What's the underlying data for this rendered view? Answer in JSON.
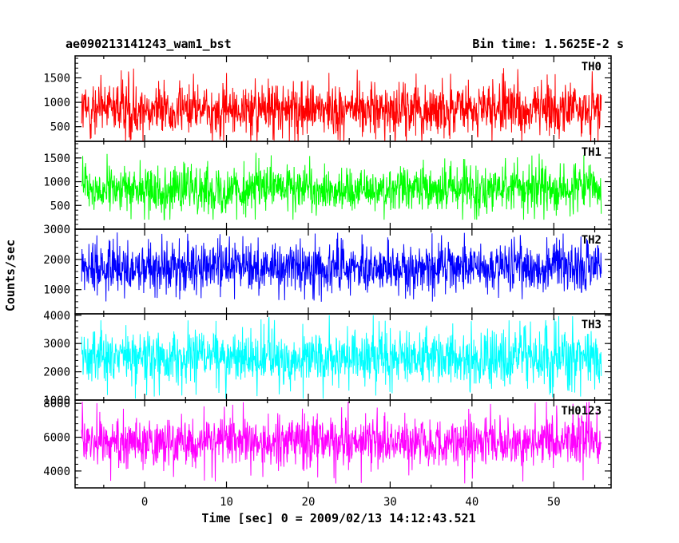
{
  "header": {
    "title": "ae090213141243_wam1_bst",
    "bin_time": "Bin time: 1.5625E-2 s"
  },
  "xlabel": "Time [sec] 0 = 2009/02/13 14:12:43.521",
  "ylabel": "Counts/sec",
  "colors": {
    "TH0": "#ff0000",
    "TH1": "#00ff00",
    "TH2": "#0000ff",
    "TH3": "#00ffff",
    "TH0123": "#ff00ff"
  },
  "chart_data": {
    "type": "line",
    "title": "ae090213141243_wam1_bst",
    "xlabel": "Time [sec] 0 = 2009/02/13 14:12:43.521",
    "ylabel": "Counts/sec",
    "xlim": [
      -8.5,
      57
    ],
    "x_ticks": [
      "0",
      "10",
      "20",
      "30",
      "40",
      "50"
    ],
    "x_data_range": [
      -7.7,
      55.8
    ],
    "bin_time_s": 0.015625,
    "panels": [
      {
        "name": "TH0",
        "ylim": [
          200,
          1950
        ],
        "y_ticks": [
          "500",
          "1000",
          "1500"
        ],
        "typical_range": [
          300,
          1400
        ],
        "extremes": [
          150,
          1900
        ],
        "color": "#ff0000"
      },
      {
        "name": "TH1",
        "ylim": [
          0,
          1850
        ],
        "y_ticks": [
          "500",
          "1000",
          "1500"
        ],
        "typical_range": [
          350,
          1350
        ],
        "extremes": [
          200,
          1800
        ],
        "color": "#00ff00"
      },
      {
        "name": "TH2",
        "ylim": [
          200,
          3000
        ],
        "y_ticks": [
          "1000",
          "2000",
          "3000"
        ],
        "typical_range": [
          900,
          2600
        ],
        "extremes": [
          600,
          2950
        ],
        "color": "#0000ff"
      },
      {
        "name": "TH3",
        "ylim": [
          1000,
          4050
        ],
        "y_ticks": [
          "1000",
          "2000",
          "3000",
          "4000"
        ],
        "typical_range": [
          1500,
          3500
        ],
        "extremes": [
          1050,
          4000
        ],
        "color": "#00ffff"
      },
      {
        "name": "TH0123",
        "ylim": [
          3000,
          8200
        ],
        "y_ticks": [
          "4000",
          "6000",
          "8000"
        ],
        "typical_range": [
          4200,
          7200
        ],
        "extremes": [
          3200,
          8100
        ],
        "color": "#ff00ff"
      }
    ]
  }
}
